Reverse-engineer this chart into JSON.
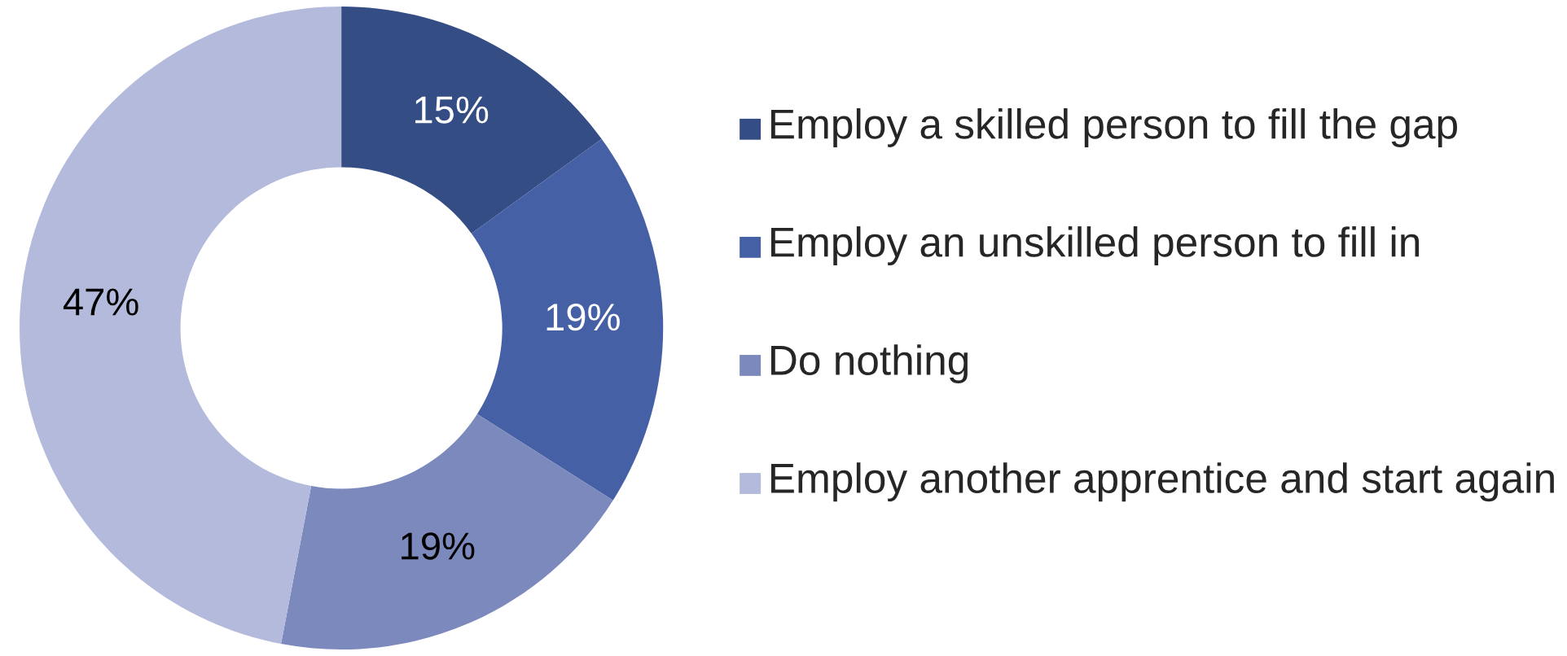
{
  "chart_data": {
    "type": "donut",
    "categories": [
      "Employ a skilled person to fill the gap",
      "Employ an unskilled person to fill in",
      "Do nothing",
      "Employ another apprentice and start again"
    ],
    "values": [
      15,
      19,
      19,
      47
    ],
    "colors": [
      "#344d85",
      "#4660a5",
      "#7b89bc",
      "#b4badb"
    ],
    "value_labels": [
      "15%",
      "19%",
      "19%",
      "47%"
    ],
    "legend": "right"
  }
}
